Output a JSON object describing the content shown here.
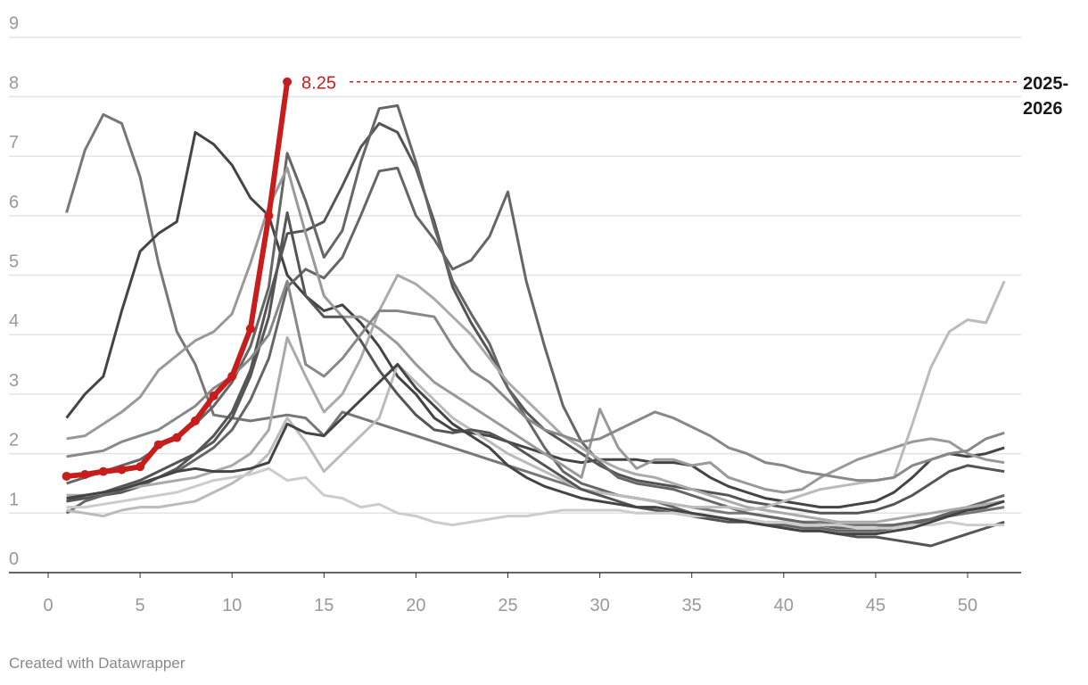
{
  "chart_data": {
    "type": "line",
    "title": "",
    "xlabel": "",
    "ylabel": "",
    "xlim": [
      0,
      52
    ],
    "ylim": [
      0,
      9
    ],
    "x_ticks": [
      0,
      5,
      10,
      15,
      20,
      25,
      30,
      35,
      40,
      45,
      50
    ],
    "y_ticks": [
      0,
      1,
      2,
      3,
      4,
      5,
      6,
      7,
      8,
      9
    ],
    "grid": "horizontal",
    "highlight": {
      "name": "2025-2026",
      "name_lines": [
        "2025-",
        "2026"
      ],
      "color": "#c71e1d",
      "last_value_label": "8.25",
      "x": [
        1,
        2,
        3,
        4,
        5,
        6,
        7,
        8,
        9,
        10,
        11,
        12,
        13
      ],
      "values": [
        1.62,
        1.65,
        1.7,
        1.73,
        1.78,
        2.15,
        2.27,
        2.55,
        2.97,
        3.3,
        4.1,
        6.0,
        8.25
      ]
    },
    "background_series": [
      {
        "color": "#777777",
        "values": [
          6.05,
          7.1,
          7.7,
          7.55,
          6.65,
          5.2,
          4.05,
          3.5,
          2.65,
          2.6,
          2.55,
          2.6,
          2.65,
          2.6,
          2.3,
          2.7,
          2.6,
          2.5,
          2.4,
          2.3,
          2.2,
          2.1,
          2.0,
          1.9,
          1.8,
          1.7,
          1.6,
          1.5,
          1.4,
          1.35,
          1.3,
          1.25,
          1.2,
          1.15,
          1.1,
          1.05,
          1.0,
          1.0,
          0.95,
          0.9,
          0.85,
          0.85,
          0.8,
          0.8,
          0.8,
          0.8,
          0.85,
          0.9,
          0.95,
          1.0,
          1.05,
          1.1
        ]
      },
      {
        "color": "#444444",
        "values": [
          2.6,
          3.0,
          3.3,
          4.4,
          5.4,
          5.7,
          5.9,
          7.4,
          7.2,
          6.85,
          6.3,
          6.0,
          5.0,
          4.65,
          4.4,
          4.5,
          4.2,
          3.8,
          3.3,
          3.0,
          2.6,
          2.4,
          2.35,
          2.3,
          2.2,
          2.1,
          2.0,
          1.9,
          1.85,
          1.9,
          1.9,
          1.9,
          1.85,
          1.85,
          1.8,
          1.6,
          1.45,
          1.35,
          1.25,
          1.2,
          1.15,
          1.1,
          1.1,
          1.15,
          1.2,
          1.35,
          1.6,
          1.9,
          2.0,
          1.95,
          2.0,
          2.1
        ]
      },
      {
        "color": "#555555",
        "values": [
          1.2,
          1.25,
          1.3,
          1.35,
          1.45,
          1.6,
          1.75,
          2.0,
          2.3,
          2.7,
          3.4,
          4.6,
          5.7,
          5.75,
          5.9,
          6.5,
          7.15,
          7.55,
          7.4,
          6.8,
          5.9,
          4.8,
          4.2,
          3.7,
          3.1,
          2.7,
          2.4,
          2.2,
          2.0,
          1.8,
          1.65,
          1.55,
          1.5,
          1.45,
          1.4,
          1.35,
          1.3,
          1.2,
          1.15,
          1.1,
          1.05,
          1.0,
          1.0,
          1.0,
          1.05,
          1.15,
          1.3,
          1.5,
          1.7,
          1.8,
          1.75,
          1.7
        ]
      },
      {
        "color": "#666666",
        "values": [
          1.5,
          1.6,
          1.7,
          1.8,
          1.9,
          2.1,
          2.3,
          2.5,
          2.8,
          3.2,
          3.8,
          4.8,
          7.05,
          6.25,
          5.3,
          5.75,
          6.9,
          7.8,
          7.85,
          6.9,
          5.8,
          4.9,
          4.35,
          3.85,
          3.1,
          2.6,
          2.1,
          1.7,
          1.5,
          1.4,
          1.3,
          1.25,
          1.2,
          1.1,
          1.0,
          0.95,
          0.9,
          0.85,
          0.8,
          0.8,
          0.75,
          0.75,
          0.7,
          0.7,
          0.7,
          0.75,
          0.8,
          0.9,
          1.0,
          1.1,
          1.2,
          1.3
        ]
      },
      {
        "color": "#666666",
        "values": [
          1.0,
          1.2,
          1.3,
          1.4,
          1.5,
          1.6,
          1.7,
          1.9,
          2.1,
          2.4,
          2.9,
          3.6,
          4.8,
          5.1,
          4.95,
          5.3,
          6.0,
          6.75,
          6.8,
          6.0,
          5.6,
          5.1,
          5.25,
          5.65,
          6.4,
          4.9,
          3.8,
          2.8,
          2.2,
          1.85,
          1.6,
          1.5,
          1.45,
          1.4,
          1.3,
          1.2,
          1.1,
          1.0,
          0.95,
          0.9,
          0.85,
          0.8,
          0.75,
          0.75,
          0.75,
          0.8,
          0.85,
          0.9,
          1.0,
          1.05,
          1.1,
          1.2
        ]
      },
      {
        "color": "#999999",
        "values": [
          2.25,
          2.3,
          2.5,
          2.7,
          2.95,
          3.4,
          3.65,
          3.9,
          4.05,
          4.35,
          5.2,
          6.15,
          6.8,
          5.7,
          4.65,
          4.3,
          4.3,
          4.1,
          3.85,
          3.5,
          3.2,
          3.0,
          2.8,
          2.6,
          2.4,
          2.2,
          2.0,
          1.8,
          1.6,
          2.75,
          2.1,
          1.75,
          1.9,
          1.9,
          1.8,
          1.85,
          1.6,
          1.5,
          1.4,
          1.35,
          1.4,
          1.6,
          1.75,
          1.9,
          2.0,
          2.1,
          2.2,
          2.25,
          2.2,
          2.0,
          1.9,
          1.85
        ]
      },
      {
        "color": "#aaaaaa",
        "values": [
          1.3,
          1.3,
          1.35,
          1.4,
          1.45,
          1.5,
          1.55,
          1.6,
          1.7,
          1.8,
          2.0,
          2.4,
          3.95,
          3.3,
          2.7,
          3.0,
          3.6,
          4.4,
          5.0,
          4.85,
          4.6,
          4.3,
          4.0,
          3.6,
          3.2,
          2.9,
          2.6,
          2.3,
          2.1,
          1.9,
          1.75,
          1.65,
          1.6,
          1.5,
          1.4,
          1.3,
          1.2,
          1.1,
          1.05,
          1.0,
          0.95,
          0.9,
          0.85,
          0.85,
          0.85,
          0.9,
          0.95,
          1.0,
          1.05,
          1.1,
          1.15,
          1.2
        ]
      },
      {
        "color": "#bbbbbb",
        "values": [
          1.05,
          1.0,
          0.95,
          1.05,
          1.1,
          1.1,
          1.15,
          1.2,
          1.35,
          1.5,
          1.7,
          2.0,
          2.6,
          2.2,
          1.7,
          2.0,
          2.3,
          2.6,
          3.5,
          3.2,
          2.9,
          2.6,
          2.4,
          2.2,
          2.0,
          1.85,
          1.7,
          1.55,
          1.4,
          1.35,
          1.3,
          1.25,
          1.2,
          1.15,
          1.1,
          1.1,
          1.1,
          1.05,
          1.1,
          1.2,
          1.3,
          1.4,
          1.45,
          1.5,
          1.55,
          1.6,
          2.5,
          3.45,
          4.05,
          4.25,
          4.2,
          4.9
        ]
      },
      {
        "color": "#555555",
        "values": [
          1.2,
          1.3,
          1.35,
          1.45,
          1.55,
          1.7,
          1.85,
          2.0,
          2.2,
          2.6,
          3.3,
          4.3,
          6.05,
          4.65,
          4.3,
          4.3,
          3.9,
          3.4,
          3.0,
          2.65,
          2.4,
          2.35,
          2.4,
          2.35,
          2.2,
          2.0,
          1.8,
          1.6,
          1.4,
          1.3,
          1.2,
          1.1,
          1.05,
          1.0,
          0.95,
          0.9,
          0.85,
          0.85,
          0.8,
          0.75,
          0.7,
          0.7,
          0.65,
          0.6,
          0.6,
          0.55,
          0.5,
          0.45,
          0.55,
          0.65,
          0.75,
          0.85
        ]
      },
      {
        "color": "#cccccc",
        "values": [
          1.1,
          1.1,
          1.15,
          1.2,
          1.25,
          1.3,
          1.35,
          1.45,
          1.55,
          1.6,
          1.65,
          1.75,
          1.55,
          1.6,
          1.3,
          1.25,
          1.1,
          1.15,
          1.0,
          0.95,
          0.85,
          0.8,
          0.85,
          0.9,
          0.95,
          0.95,
          1.0,
          1.05,
          1.05,
          1.05,
          1.05,
          1.0,
          1.0,
          1.0,
          0.95,
          0.95,
          0.9,
          0.9,
          0.85,
          0.85,
          0.8,
          0.8,
          0.8,
          0.75,
          0.75,
          0.75,
          0.8,
          0.8,
          0.85,
          0.8,
          0.8,
          0.8
        ]
      },
      {
        "color": "#444444",
        "values": [
          1.25,
          1.3,
          1.35,
          1.4,
          1.5,
          1.6,
          1.7,
          1.75,
          1.7,
          1.7,
          1.75,
          1.85,
          2.5,
          2.35,
          2.3,
          2.6,
          2.9,
          3.2,
          3.5,
          3.1,
          2.8,
          2.5,
          2.3,
          2.1,
          1.8,
          1.6,
          1.45,
          1.35,
          1.25,
          1.2,
          1.15,
          1.1,
          1.1,
          1.05,
          1.0,
          0.95,
          0.9,
          0.85,
          0.8,
          0.75,
          0.7,
          0.7,
          0.65,
          0.65,
          0.65,
          0.7,
          0.75,
          0.85,
          0.95,
          1.05,
          1.1,
          1.2
        ]
      },
      {
        "color": "#888888",
        "values": [
          1.95,
          2.0,
          2.05,
          2.2,
          2.3,
          2.4,
          2.6,
          2.8,
          3.1,
          3.3,
          3.6,
          4.0,
          4.9,
          3.5,
          3.3,
          3.6,
          4.0,
          4.4,
          4.4,
          4.35,
          4.3,
          3.8,
          3.4,
          3.2,
          2.9,
          2.6,
          2.4,
          2.3,
          2.2,
          2.25,
          2.4,
          2.55,
          2.7,
          2.6,
          2.45,
          2.3,
          2.1,
          2.0,
          1.85,
          1.8,
          1.7,
          1.65,
          1.6,
          1.55,
          1.55,
          1.6,
          1.8,
          1.9,
          2.0,
          2.05,
          2.25,
          2.35
        ]
      }
    ]
  },
  "footer": {
    "credit": "Created with Datawrapper"
  }
}
